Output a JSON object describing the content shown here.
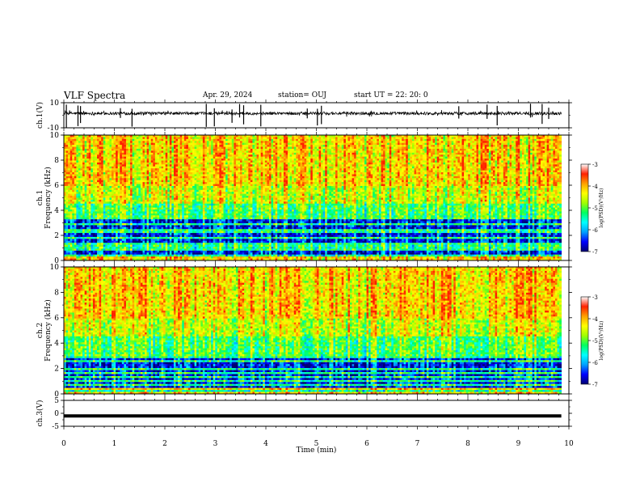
{
  "header": {
    "title": "VLF Spectra",
    "date": "Apr. 29, 2024",
    "station": "station= OUJ",
    "start": "start  UT  =   22: 20: 0"
  },
  "chart_data": [
    {
      "type": "line",
      "name": "ch1-waveform",
      "ylabel": "ch.1(V)",
      "ylim": [
        -10,
        10
      ],
      "yticks": [
        10,
        -10
      ],
      "xlim": [
        0,
        10
      ],
      "baseline": 1.5,
      "noise": 1.2,
      "spikes": [
        0.05,
        0.28,
        0.33,
        1.12,
        1.35,
        2.82,
        2.98,
        3.33,
        3.48,
        3.56,
        3.9,
        4.82,
        5.02,
        5.1,
        7.82,
        8.38,
        8.58,
        9.24,
        9.47,
        9.6
      ],
      "color": "#000000"
    },
    {
      "type": "heatmap",
      "name": "ch1-spectrogram",
      "ylabel_top": "ch.1",
      "ylabel": "Frequency (kHz)",
      "ylim": [
        0,
        10
      ],
      "yticks": [
        0,
        2,
        4,
        6,
        8,
        10
      ],
      "xlim": [
        0,
        10
      ],
      "colorbar": {
        "label": "log(PSD)(V²/Hz)",
        "range": [
          -7,
          -3
        ],
        "ticks": [
          -3,
          -4,
          -5,
          -6,
          -7
        ]
      },
      "low_band_top": 3.3
    },
    {
      "type": "heatmap",
      "name": "ch2-spectrogram",
      "ylabel_top": "ch.2",
      "ylabel": "Frequency (kHz)",
      "ylim": [
        0,
        10
      ],
      "yticks": [
        0,
        2,
        4,
        6,
        8,
        10
      ],
      "xlim": [
        0,
        10
      ],
      "colorbar": {
        "label": "log(PSD)(V²/Hz)",
        "range": [
          -7,
          -3
        ],
        "ticks": [
          -3,
          -4,
          -5,
          -6,
          -7
        ]
      },
      "low_band_top": 3.0
    },
    {
      "type": "line",
      "name": "ch3-waveform",
      "ylabel": "ch.3(V)",
      "ylim": [
        -5,
        5
      ],
      "yticks": [
        5,
        0,
        -5
      ],
      "xlim": [
        0,
        10
      ],
      "baseline": -1.0,
      "color": "#000000"
    }
  ],
  "x_axis": {
    "label": "Time  (min)",
    "range": [
      0,
      10
    ],
    "ticks": [
      0,
      1,
      2,
      3,
      4,
      5,
      6,
      7,
      8,
      9,
      10
    ],
    "data_end": 9.85
  },
  "colormap": [
    "#000070",
    "#0000ff",
    "#00a0ff",
    "#00ffff",
    "#00ff60",
    "#a0ff00",
    "#ffff00",
    "#ffa000",
    "#ff2000",
    "#ffffff"
  ]
}
